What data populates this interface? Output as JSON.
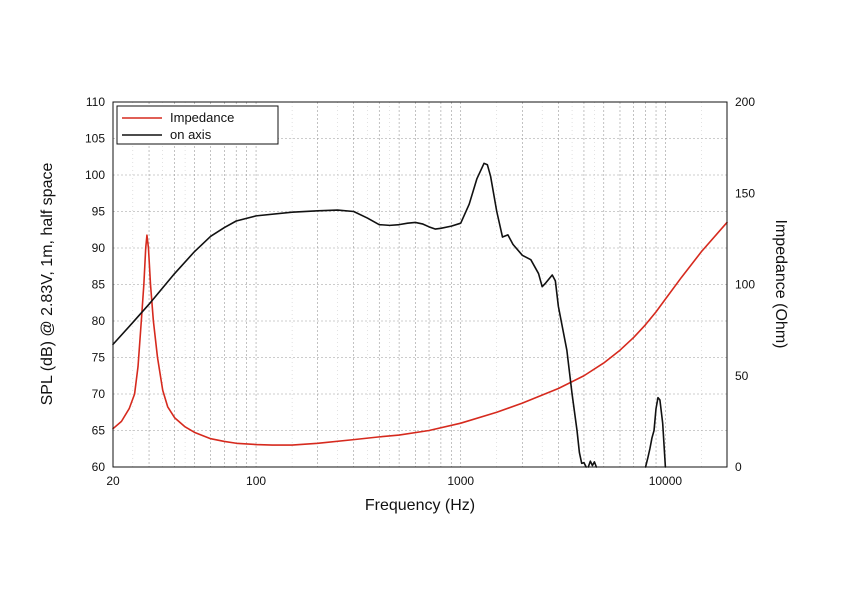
{
  "chart_data": {
    "type": "line",
    "xlabel": "Frequency (Hz)",
    "ylabel_left": "SPL (dB) @ 2.83V, 1m, half space",
    "ylabel_right": "Impedance (Ohm)",
    "x_scale": "log",
    "xlim": [
      20,
      20000
    ],
    "ylim_left": [
      60,
      110
    ],
    "ylim_right": [
      0,
      200
    ],
    "grid": true,
    "legend_position": "top-left",
    "x_tick_labels": [
      "20",
      "100",
      "1000",
      "10000"
    ],
    "y_left_tick_labels": [
      "60",
      "65",
      "70",
      "75",
      "80",
      "85",
      "90",
      "95",
      "100",
      "105",
      "110"
    ],
    "y_right_tick_labels": [
      "0",
      "50",
      "100",
      "150",
      "200"
    ],
    "series": [
      {
        "name": "Impedance",
        "axis": "right",
        "color": "#d62a1e",
        "points": [
          [
            20,
            21
          ],
          [
            22,
            25
          ],
          [
            24,
            32
          ],
          [
            25.5,
            40
          ],
          [
            26.5,
            55
          ],
          [
            27.5,
            80
          ],
          [
            28.3,
            100
          ],
          [
            28.9,
            120
          ],
          [
            29.3,
            127
          ],
          [
            29.8,
            120
          ],
          [
            30.5,
            100
          ],
          [
            31.5,
            80
          ],
          [
            33,
            60
          ],
          [
            35,
            42
          ],
          [
            37,
            33
          ],
          [
            40,
            27
          ],
          [
            45,
            22
          ],
          [
            50,
            19
          ],
          [
            60,
            15.5
          ],
          [
            70,
            14
          ],
          [
            80,
            13
          ],
          [
            100,
            12.3
          ],
          [
            120,
            12
          ],
          [
            150,
            12
          ],
          [
            200,
            13
          ],
          [
            300,
            15
          ],
          [
            400,
            16.5
          ],
          [
            500,
            17.5
          ],
          [
            700,
            20
          ],
          [
            1000,
            24
          ],
          [
            1500,
            30
          ],
          [
            2000,
            35
          ],
          [
            3000,
            43
          ],
          [
            4000,
            50
          ],
          [
            5000,
            57
          ],
          [
            6000,
            64
          ],
          [
            7000,
            71
          ],
          [
            8000,
            78
          ],
          [
            9000,
            85
          ],
          [
            10000,
            92
          ],
          [
            12000,
            104
          ],
          [
            15000,
            118
          ],
          [
            20000,
            134
          ]
        ]
      },
      {
        "name": "on axis",
        "axis": "left",
        "color": "#111111",
        "segments": [
          [
            [
              20,
              76.8
            ],
            [
              25,
              79.8
            ],
            [
              30,
              82.3
            ],
            [
              40,
              86.5
            ],
            [
              50,
              89.5
            ],
            [
              60,
              91.6
            ],
            [
              70,
              92.8
            ],
            [
              80,
              93.7
            ],
            [
              100,
              94.4
            ],
            [
              150,
              94.9
            ],
            [
              200,
              95.1
            ],
            [
              250,
              95.2
            ],
            [
              300,
              95
            ],
            [
              350,
              94.1
            ],
            [
              400,
              93.2
            ],
            [
              450,
              93.1
            ],
            [
              500,
              93.2
            ],
            [
              550,
              93.4
            ],
            [
              600,
              93.5
            ],
            [
              650,
              93.3
            ],
            [
              700,
              92.9
            ],
            [
              750,
              92.6
            ],
            [
              800,
              92.7
            ],
            [
              900,
              93
            ],
            [
              1000,
              93.4
            ],
            [
              1100,
              96
            ],
            [
              1200,
              99.5
            ],
            [
              1300,
              101.6
            ],
            [
              1350,
              101.4
            ],
            [
              1400,
              99.8
            ],
            [
              1500,
              95
            ],
            [
              1600,
              91.5
            ],
            [
              1700,
              91.8
            ],
            [
              1800,
              90.5
            ],
            [
              2000,
              89
            ],
            [
              2200,
              88.4
            ],
            [
              2400,
              86.5
            ],
            [
              2500,
              84.7
            ],
            [
              2600,
              85.2
            ],
            [
              2800,
              86.3
            ],
            [
              2900,
              85.5
            ],
            [
              3000,
              82
            ],
            [
              3300,
              76
            ],
            [
              3500,
              70
            ],
            [
              3700,
              65
            ],
            [
              3800,
              62
            ],
            [
              3900,
              60.5
            ],
            [
              4000,
              60.6
            ],
            [
              4100,
              60
            ]
          ],
          [
            [
              4200,
              60
            ],
            [
              4300,
              60.8
            ],
            [
              4400,
              60.2
            ],
            [
              4500,
              60.7
            ],
            [
              4600,
              60
            ]
          ],
          [
            [
              8000,
              60
            ],
            [
              8200,
              61.2
            ],
            [
              8400,
              62.5
            ],
            [
              8600,
              64
            ],
            [
              8800,
              65
            ],
            [
              9000,
              68
            ],
            [
              9200,
              69.5
            ],
            [
              9400,
              69.2
            ],
            [
              9700,
              66
            ],
            [
              10000,
              60
            ]
          ]
        ]
      }
    ]
  }
}
